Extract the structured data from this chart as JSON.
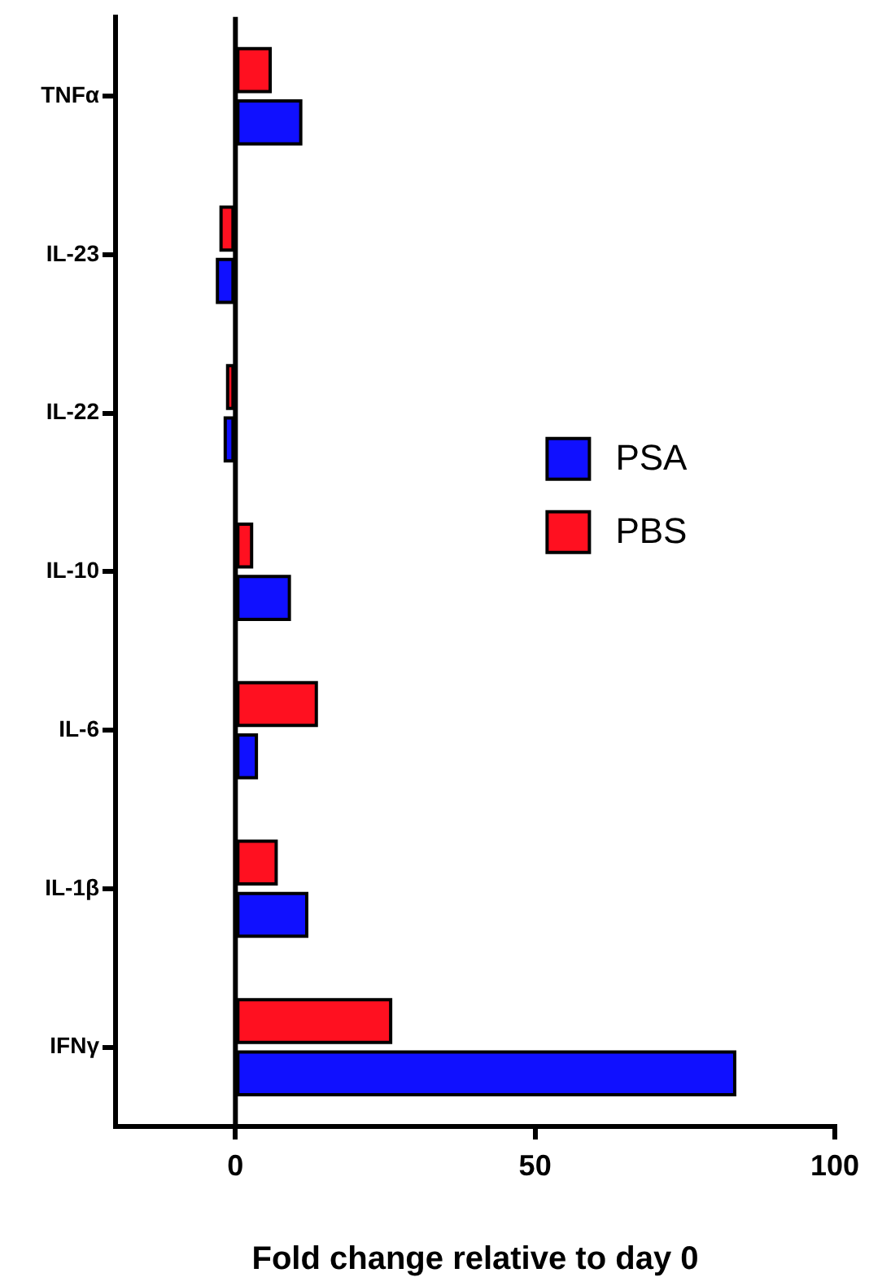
{
  "chart_data": {
    "type": "bar",
    "orientation": "horizontal",
    "xlabel": "Fold change relative to day 0",
    "categories": [
      "TNFα",
      "IL-23",
      "IL-22",
      "IL-10",
      "IL-6",
      "IL-1β",
      "IFNγ"
    ],
    "series": [
      {
        "name": "PBS",
        "color": "#ff1020",
        "values": [
          5.8,
          -2.4,
          -1.3,
          2.7,
          13.5,
          6.8,
          25.9
        ]
      },
      {
        "name": "PSA",
        "color": "#1010ff",
        "values": [
          10.9,
          -3.0,
          -1.7,
          9.0,
          3.5,
          11.9,
          83.3
        ]
      }
    ],
    "xlim": [
      -20,
      100
    ],
    "xticks": [
      0,
      50,
      100
    ],
    "grid": false,
    "legend": "right",
    "ref_lines": [
      {
        "axis": "x",
        "value": 0
      }
    ]
  }
}
